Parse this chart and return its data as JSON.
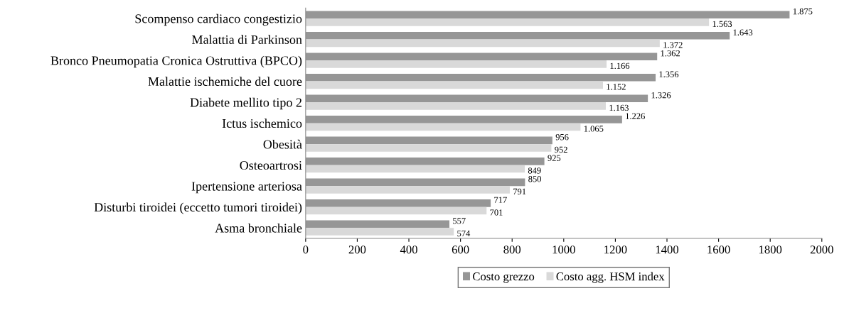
{
  "chart_data": {
    "type": "bar",
    "orientation": "horizontal",
    "categories": [
      "Scompenso cardiaco congestizio",
      "Malattia di Parkinson",
      "Bronco Pneumopatia Cronica Ostruttiva (BPCO)",
      "Malattie ischemiche del cuore",
      "Diabete mellito tipo 2",
      "Ictus ischemico",
      "Obesità",
      "Osteoartrosi",
      "Ipertensione arteriosa",
      "Disturbi tiroidei (eccetto tumori tiroidei)",
      "Asma bronchiale"
    ],
    "series": [
      {
        "name": "Costo grezzo",
        "color": "#969696",
        "values": [
          1875,
          1643,
          1362,
          1356,
          1326,
          1226,
          956,
          925,
          850,
          717,
          557
        ],
        "value_labels": [
          "1.875",
          "1.643",
          "1.362",
          "1.356",
          "1.326",
          "1.226",
          "956",
          "925",
          "850",
          "717",
          "557"
        ]
      },
      {
        "name": "Costo agg. HSM index",
        "color": "#d9d9d9",
        "values": [
          1563,
          1372,
          1166,
          1152,
          1163,
          1065,
          952,
          849,
          791,
          701,
          574
        ],
        "value_labels": [
          "1.563",
          "1.372",
          "1.166",
          "1.152",
          "1.163",
          "1.065",
          "952",
          "849",
          "791",
          "701",
          "574"
        ]
      }
    ],
    "xlim": [
      0,
      2000
    ],
    "xticks": [
      0,
      200,
      400,
      600,
      800,
      1000,
      1200,
      1400,
      1600,
      1800,
      2000
    ],
    "grid": false,
    "legend": "bottom"
  }
}
